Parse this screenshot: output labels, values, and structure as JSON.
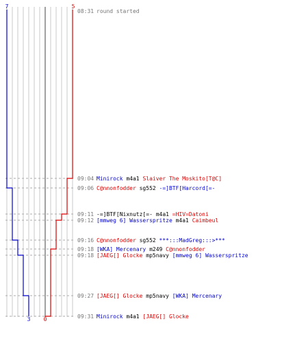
{
  "colors": {
    "team_blue": "#0000cc",
    "team_red": "#dd0000",
    "time": "#777777",
    "weapon": "#000000",
    "grid": "#c8c8c8",
    "grid_center": "#888888",
    "dash": "#aaaaaa"
  },
  "score": {
    "blue_start": "7",
    "red_start": "5",
    "blue_end": "3",
    "red_end": "0"
  },
  "events": [
    {
      "time": "08:31",
      "parts": [
        {
          "text": "round started",
          "style": "time"
        }
      ]
    },
    {
      "time": "09:04",
      "parts": [
        {
          "text": "Minirock",
          "style": "blue"
        },
        {
          "text": " m4a1 ",
          "style": "weapon"
        },
        {
          "text": "Slaiver The Moskito[T@C]",
          "style": "red"
        }
      ]
    },
    {
      "time": "09:06",
      "parts": [
        {
          "text": "C@nnonfodder",
          "style": "red"
        },
        {
          "text": " sg552 ",
          "style": "weapon"
        },
        {
          "text": "-=]BTF[Harcord[=-",
          "style": "blue"
        }
      ]
    },
    {
      "time": "09:11",
      "parts": [
        {
          "text": "-=]BTF[Nixnutz[=-",
          "style": "weapon"
        },
        {
          "text": " m4a1 ",
          "style": "weapon"
        },
        {
          "text": "=HIV=Datoni",
          "style": "red"
        }
      ]
    },
    {
      "time": "09:12",
      "parts": [
        {
          "text": "[mmweg 6] Wasserspritze",
          "style": "blue"
        },
        {
          "text": " m4a1 ",
          "style": "weapon"
        },
        {
          "text": "Caimbeul",
          "style": "red"
        }
      ]
    },
    {
      "time": "09:16",
      "parts": [
        {
          "text": "C@nnonfodder",
          "style": "red"
        },
        {
          "text": " sg552 ",
          "style": "weapon"
        },
        {
          "text": "***:::MadGreg:::>***",
          "style": "blue"
        }
      ]
    },
    {
      "time": "09:18",
      "parts": [
        {
          "text": "[WKA] Mercenary",
          "style": "blue"
        },
        {
          "text": " m249 ",
          "style": "weapon"
        },
        {
          "text": "C@nnonfodder",
          "style": "red"
        }
      ]
    },
    {
      "time": "09:18",
      "parts": [
        {
          "text": "[JAEG[] Glocke",
          "style": "red"
        },
        {
          "text": " mp5navy ",
          "style": "weapon"
        },
        {
          "text": "[mmweg 6] Wasserspritze",
          "style": "blue"
        }
      ]
    },
    {
      "time": "09:27",
      "parts": [
        {
          "text": "[JAEG[] Glocke",
          "style": "red"
        },
        {
          "text": " mp5navy ",
          "style": "weapon"
        },
        {
          "text": "[WKA] Mercenary",
          "style": "blue"
        }
      ]
    },
    {
      "time": "09:31",
      "parts": [
        {
          "text": "Minirock",
          "style": "blue"
        },
        {
          "text": " m4a1 ",
          "style": "weapon"
        },
        {
          "text": "[JAEG[] Glocke",
          "style": "red"
        }
      ]
    }
  ]
}
